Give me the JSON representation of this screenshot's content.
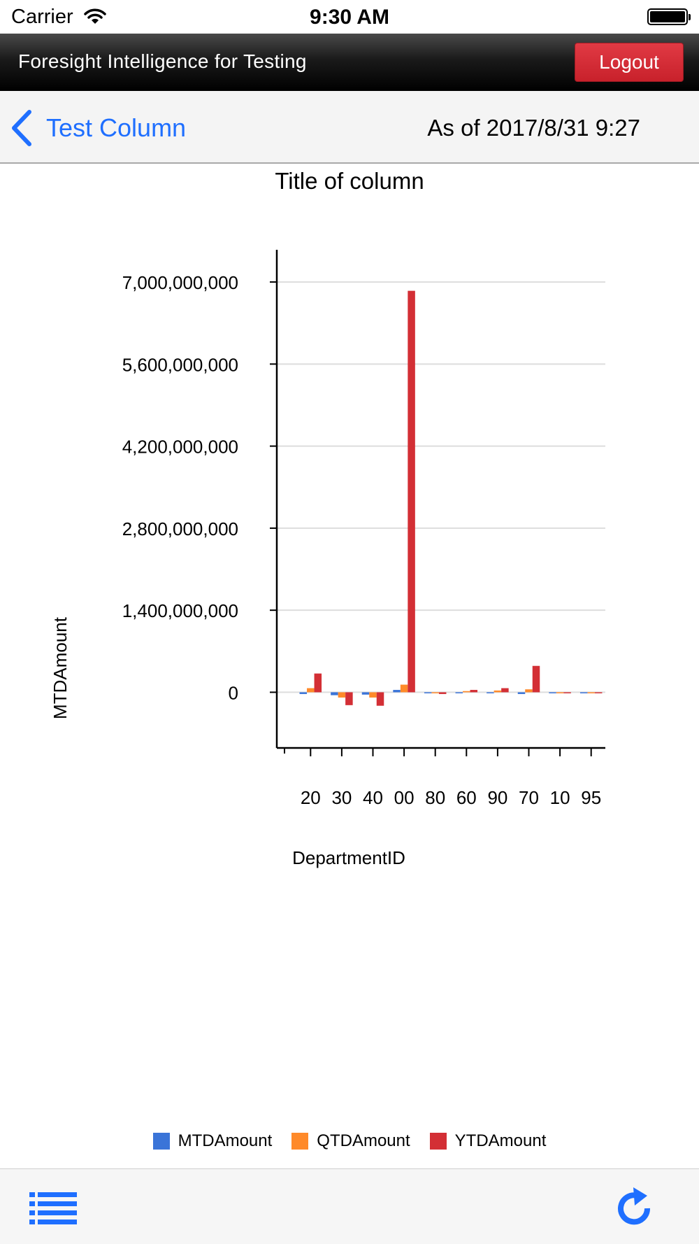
{
  "status_bar": {
    "carrier": "Carrier",
    "time": "9:30 AM",
    "icons": [
      "wifi-icon",
      "battery-icon"
    ]
  },
  "header": {
    "title": "Foresight Intelligence for Testing",
    "logout_label": "Logout"
  },
  "nav": {
    "back_label": "Test Column",
    "as_of": "As of 2017/8/31 9:27"
  },
  "colors": {
    "accent": "#1f6fff",
    "logout": "#d32a34",
    "mtd": "#3a74d8",
    "qtd": "#ff8a2a",
    "ytd": "#d32f35"
  },
  "chart_data": {
    "type": "bar",
    "title": "Title of column",
    "xlabel": "DepartmentID",
    "ylabel": "MTDAmount",
    "categories": [
      "20",
      "30",
      "40",
      "00",
      "80",
      "60",
      "90",
      "70",
      "10",
      "95"
    ],
    "ylim": [
      -950000000,
      7550000000
    ],
    "yticks": [
      0,
      1400000000,
      2800000000,
      4200000000,
      5600000000,
      7000000000
    ],
    "ytick_labels": [
      "0",
      "1,400,000,000",
      "2,800,000,000",
      "4,200,000,000",
      "5,600,000,000",
      "7,000,000,000"
    ],
    "grid": true,
    "legend": "bottom",
    "series": [
      {
        "name": "MTDAmount",
        "values": [
          -30000000,
          -50000000,
          -40000000,
          40000000,
          -10000000,
          0,
          -10000000,
          -30000000,
          -10000000,
          0
        ]
      },
      {
        "name": "QTDAmount",
        "values": [
          70000000,
          -90000000,
          -90000000,
          130000000,
          -10000000,
          20000000,
          30000000,
          50000000,
          -10000000,
          0
        ]
      },
      {
        "name": "YTDAmount",
        "values": [
          320000000,
          -220000000,
          -230000000,
          6850000000,
          -30000000,
          40000000,
          70000000,
          450000000,
          -10000000,
          -10000000
        ]
      }
    ]
  },
  "toolbar": {
    "icons": [
      "menu-icon",
      "refresh-icon"
    ]
  }
}
